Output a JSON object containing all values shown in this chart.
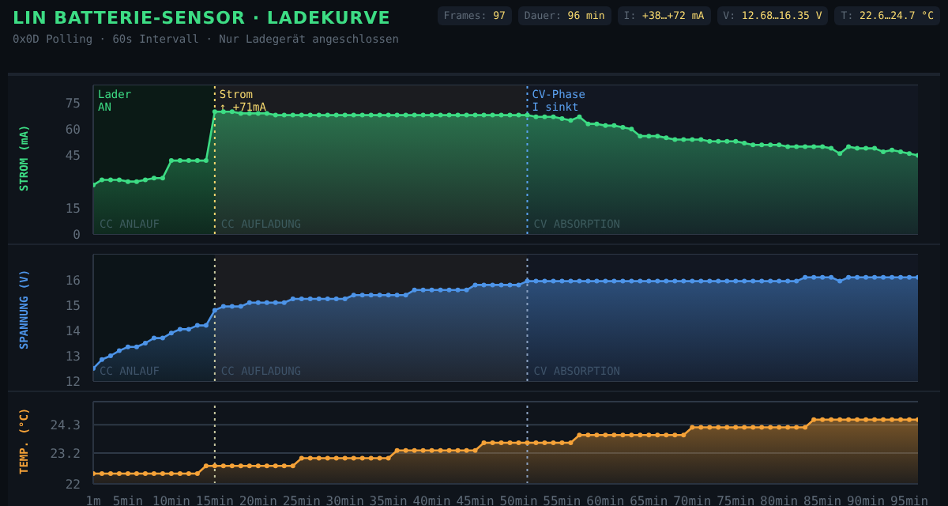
{
  "chart_data": [
    {
      "type": "area",
      "title": "LIN BATTERIE-SENSOR · LADEKURVE",
      "subtitle": "0x0D Polling · 60s Intervall · Nur Ladegerät angeschlossen",
      "annotations": [
        "Frames: 97",
        "Dauer: 96 min",
        "I: +38…+72 mA",
        "V: 12.68…16.35 V",
        "T: 22.6…24.7 °C",
        {
          "text": "Lader\nAN",
          "x": 1,
          "y": 85
        }
      ],
      "ylabel": "STROM (mA)",
      "grid": "y",
      "marker": "circle",
      "tick_labels": "y",
      "x": [
        1,
        2,
        3,
        4,
        5,
        6,
        7,
        8,
        9,
        10,
        11,
        12,
        13,
        14,
        15,
        16,
        17,
        18,
        19,
        20,
        21,
        22,
        23,
        24,
        25,
        26,
        27,
        28,
        29,
        30,
        31,
        32,
        33,
        34,
        35,
        36,
        37,
        38,
        39,
        40,
        41,
        42,
        43,
        44,
        45,
        46,
        47,
        48,
        49,
        50,
        51,
        52,
        53,
        54,
        55,
        56,
        57,
        58,
        59,
        60,
        61,
        62,
        63,
        64,
        65,
        66,
        67,
        68,
        69,
        70,
        71,
        72,
        73,
        74,
        75,
        76,
        77,
        78,
        79,
        80,
        81,
        82,
        83,
        84,
        85,
        86,
        87,
        88,
        89,
        90,
        91,
        92,
        93,
        94,
        95,
        96
      ],
      "series": [
        {
          "color": "#3ddc84",
          "values": [
            28,
            31,
            31,
            31,
            30,
            30,
            31,
            32,
            32,
            42,
            42,
            42,
            42,
            42,
            70,
            70,
            70,
            69,
            69,
            69,
            69,
            68,
            68,
            68,
            68,
            68,
            68,
            68,
            68,
            68,
            68,
            68,
            68,
            68,
            68,
            68,
            68,
            68,
            68,
            68,
            68,
            68,
            68,
            68,
            68,
            68,
            68,
            68,
            68,
            68,
            68,
            67,
            67,
            67,
            66,
            65,
            67,
            63,
            63,
            62,
            62,
            61,
            60,
            56,
            56,
            56,
            55,
            54,
            54,
            54,
            54,
            53,
            53,
            53,
            53,
            52,
            51,
            51,
            51,
            51,
            50,
            50,
            50,
            50,
            50,
            49,
            46,
            50,
            49,
            49,
            49,
            47,
            48,
            47,
            46,
            45
          ]
        }
      ],
      "xlim": [
        1,
        96
      ],
      "ylim": [
        0,
        85
      ],
      "yticks": [
        0,
        15,
        45,
        60,
        75
      ],
      "ref_lines": [
        {
          "axis": "x",
          "value": 15,
          "label": "Strom\n↑ +71mA",
          "color": "#f5d76e",
          "line_style": "dotted"
        },
        {
          "axis": "x",
          "value": 51,
          "label": "CV-Phase\nI sinkt",
          "color": "#5aa0f0",
          "line_style": "dotted"
        }
      ],
      "bands": [
        {
          "axis": "x",
          "from": 1,
          "to": 15,
          "label": "CC ANLAUF",
          "color": "#0b1a16"
        },
        {
          "axis": "x",
          "from": 15,
          "to": 51,
          "label": "CC AUFLADUNG",
          "color": "#1b1c20"
        },
        {
          "axis": "x",
          "from": 51,
          "to": 96,
          "label": "CV ABSORPTION",
          "color": "#121722"
        }
      ]
    },
    {
      "type": "area",
      "ylabel": "SPANNUNG (V)",
      "grid": "y",
      "marker": "circle",
      "tick_labels": "y",
      "x": [
        1,
        2,
        3,
        4,
        5,
        6,
        7,
        8,
        9,
        10,
        11,
        12,
        13,
        14,
        15,
        16,
        17,
        18,
        19,
        20,
        21,
        22,
        23,
        24,
        25,
        26,
        27,
        28,
        29,
        30,
        31,
        32,
        33,
        34,
        35,
        36,
        37,
        38,
        39,
        40,
        41,
        42,
        43,
        44,
        45,
        46,
        47,
        48,
        49,
        50,
        51,
        52,
        53,
        54,
        55,
        56,
        57,
        58,
        59,
        60,
        61,
        62,
        63,
        64,
        65,
        66,
        67,
        68,
        69,
        70,
        71,
        72,
        73,
        74,
        75,
        76,
        77,
        78,
        79,
        80,
        81,
        82,
        83,
        84,
        85,
        86,
        87,
        88,
        89,
        90,
        91,
        92,
        93,
        94,
        95,
        96
      ],
      "series": [
        {
          "color": "#4d94e8",
          "values": [
            12.5,
            12.85,
            13.0,
            13.2,
            13.35,
            13.35,
            13.5,
            13.7,
            13.7,
            13.9,
            14.05,
            14.05,
            14.2,
            14.2,
            14.8,
            14.95,
            14.95,
            14.95,
            15.1,
            15.1,
            15.1,
            15.1,
            15.1,
            15.25,
            15.25,
            15.25,
            15.25,
            15.25,
            15.25,
            15.25,
            15.4,
            15.4,
            15.4,
            15.4,
            15.4,
            15.4,
            15.4,
            15.6,
            15.6,
            15.6,
            15.6,
            15.6,
            15.6,
            15.6,
            15.8,
            15.8,
            15.8,
            15.8,
            15.8,
            15.8,
            15.95,
            15.95,
            15.95,
            15.95,
            15.95,
            15.95,
            15.95,
            15.95,
            15.95,
            15.95,
            15.95,
            15.95,
            15.95,
            15.95,
            15.95,
            15.95,
            15.95,
            15.95,
            15.95,
            15.95,
            15.95,
            15.95,
            15.95,
            15.95,
            15.95,
            15.95,
            15.95,
            15.95,
            15.95,
            15.95,
            15.95,
            15.95,
            16.1,
            16.1,
            16.1,
            16.1,
            15.95,
            16.1,
            16.1,
            16.1,
            16.1,
            16.1,
            16.1,
            16.1,
            16.1,
            16.1
          ]
        }
      ],
      "xlim": [
        1,
        96
      ],
      "ylim": [
        12,
        17
      ],
      "yticks": [
        12,
        13,
        14,
        15,
        16
      ],
      "ref_lines": [
        {
          "axis": "x",
          "value": 15,
          "color": "#c8c8a0",
          "line_style": "dotted"
        },
        {
          "axis": "x",
          "value": 51,
          "color": "#8aa0c0",
          "line_style": "dotted"
        }
      ],
      "bands": [
        {
          "axis": "x",
          "from": 1,
          "to": 15,
          "label": "CC ANLAUF",
          "color": "#0c1418"
        },
        {
          "axis": "x",
          "from": 15,
          "to": 51,
          "label": "CC AUFLADUNG",
          "color": "#1b1c20"
        },
        {
          "axis": "x",
          "from": 51,
          "to": 96,
          "label": "CV ABSORPTION",
          "color": "#121722"
        }
      ]
    },
    {
      "type": "area",
      "ylabel": "TEMP. (°C)",
      "grid": "y",
      "marker": "circle",
      "x": [
        1,
        2,
        3,
        4,
        5,
        6,
        7,
        8,
        9,
        10,
        11,
        12,
        13,
        14,
        15,
        16,
        17,
        18,
        19,
        20,
        21,
        22,
        23,
        24,
        25,
        26,
        27,
        28,
        29,
        30,
        31,
        32,
        33,
        34,
        35,
        36,
        37,
        38,
        39,
        40,
        41,
        42,
        43,
        44,
        45,
        46,
        47,
        48,
        49,
        50,
        51,
        52,
        53,
        54,
        55,
        56,
        57,
        58,
        59,
        60,
        61,
        62,
        63,
        64,
        65,
        66,
        67,
        68,
        69,
        70,
        71,
        72,
        73,
        74,
        75,
        76,
        77,
        78,
        79,
        80,
        81,
        82,
        83,
        84,
        85,
        86,
        87,
        88,
        89,
        90,
        91,
        92,
        93,
        94,
        95,
        96
      ],
      "series": [
        {
          "color": "#f5a238",
          "values": [
            22.4,
            22.4,
            22.4,
            22.4,
            22.4,
            22.4,
            22.4,
            22.4,
            22.4,
            22.4,
            22.4,
            22.4,
            22.4,
            22.7,
            22.7,
            22.7,
            22.7,
            22.7,
            22.7,
            22.7,
            22.7,
            22.7,
            22.7,
            22.7,
            23.0,
            23.0,
            23.0,
            23.0,
            23.0,
            23.0,
            23.0,
            23.0,
            23.0,
            23.0,
            23.0,
            23.3,
            23.3,
            23.3,
            23.3,
            23.3,
            23.3,
            23.3,
            23.3,
            23.3,
            23.3,
            23.6,
            23.6,
            23.6,
            23.6,
            23.6,
            23.6,
            23.6,
            23.6,
            23.6,
            23.6,
            23.6,
            23.9,
            23.9,
            23.9,
            23.9,
            23.9,
            23.9,
            23.9,
            23.9,
            23.9,
            23.9,
            23.9,
            23.9,
            23.9,
            24.2,
            24.2,
            24.2,
            24.2,
            24.2,
            24.2,
            24.2,
            24.2,
            24.2,
            24.2,
            24.2,
            24.2,
            24.2,
            24.2,
            24.5,
            24.5,
            24.5,
            24.5,
            24.5,
            24.5,
            24.5,
            24.5,
            24.5,
            24.5,
            24.5,
            24.5,
            24.5
          ]
        }
      ],
      "xlim": [
        1,
        96
      ],
      "ylim": [
        22,
        25.2
      ],
      "yticks": [
        22,
        23.2,
        24.3
      ],
      "xticks": [
        {
          "value": 1,
          "label": "1m"
        },
        {
          "value": 5,
          "label": "5min"
        },
        {
          "value": 10,
          "label": "10min"
        },
        {
          "value": 15,
          "label": "15min"
        },
        {
          "value": 20,
          "label": "20min"
        },
        {
          "value": 25,
          "label": "25min"
        },
        {
          "value": 30,
          "label": "30min"
        },
        {
          "value": 35,
          "label": "35min"
        },
        {
          "value": 40,
          "label": "40min"
        },
        {
          "value": 45,
          "label": "45min"
        },
        {
          "value": 50,
          "label": "50min"
        },
        {
          "value": 55,
          "label": "55min"
        },
        {
          "value": 60,
          "label": "60min"
        },
        {
          "value": 65,
          "label": "65min"
        },
        {
          "value": 70,
          "label": "70min"
        },
        {
          "value": 75,
          "label": "75min"
        },
        {
          "value": 80,
          "label": "80min"
        },
        {
          "value": 85,
          "label": "85min"
        },
        {
          "value": 90,
          "label": "90min"
        },
        {
          "value": 95,
          "label": "95min"
        }
      ],
      "ref_lines": [
        {
          "axis": "x",
          "value": 15,
          "color": "#c8c8a0",
          "line_style": "dotted"
        },
        {
          "axis": "x",
          "value": 51,
          "color": "#8aa0c0",
          "line_style": "dotted"
        }
      ]
    }
  ]
}
